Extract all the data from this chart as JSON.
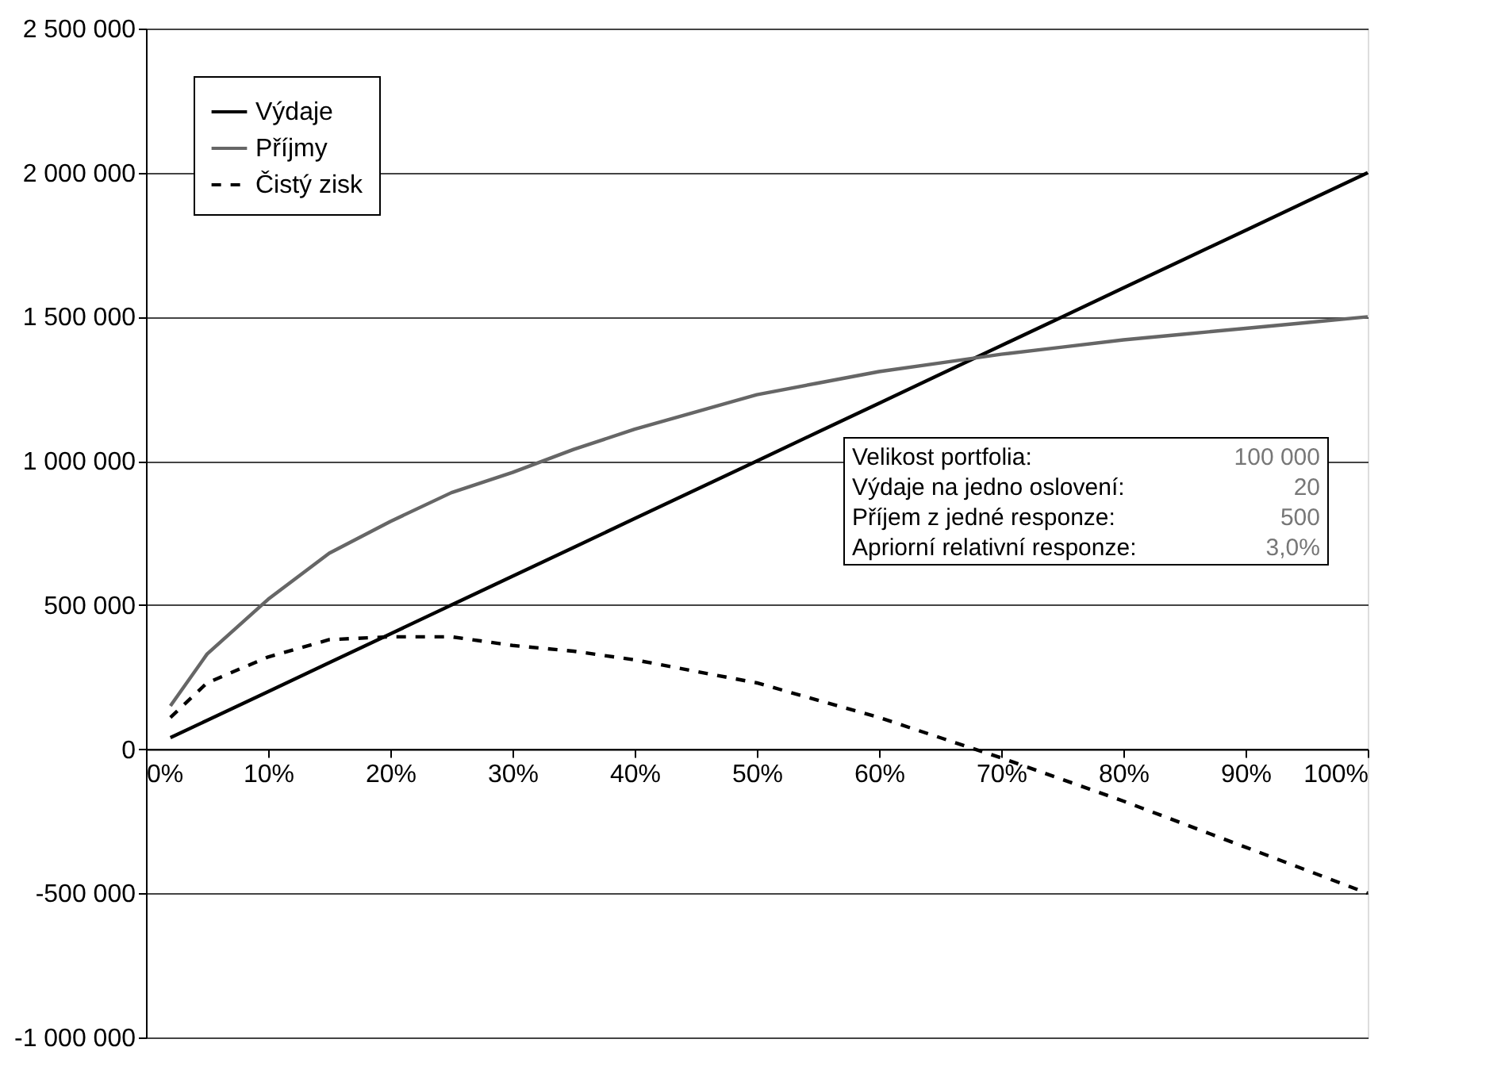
{
  "chart_data": {
    "type": "line",
    "x": [
      2,
      5,
      10,
      15,
      20,
      25,
      30,
      35,
      40,
      45,
      50,
      55,
      60,
      65,
      70,
      75,
      80,
      85,
      90,
      95,
      100
    ],
    "series": [
      {
        "name": "Výdaje",
        "color": "#000000",
        "line_style": "solid",
        "values": [
          40000,
          100000,
          200000,
          300000,
          400000,
          500000,
          600000,
          700000,
          800000,
          900000,
          1000000,
          1100000,
          1200000,
          1300000,
          1400000,
          1500000,
          1600000,
          1700000,
          1800000,
          1900000,
          2000000
        ]
      },
      {
        "name": "Příjmy",
        "color": "#666666",
        "line_style": "solid",
        "values": [
          150000,
          330000,
          520000,
          680000,
          790000,
          890000,
          960000,
          1040000,
          1110000,
          1170000,
          1230000,
          1270000,
          1310000,
          1340000,
          1370000,
          1395000,
          1420000,
          1440000,
          1460000,
          1480000,
          1500000
        ]
      },
      {
        "name": "Čistý zisk",
        "color": "#000000",
        "line_style": "dashed",
        "values": [
          110000,
          230000,
          320000,
          380000,
          390000,
          390000,
          360000,
          340000,
          310000,
          270000,
          230000,
          170000,
          110000,
          40000,
          -30000,
          -105000,
          -180000,
          -260000,
          -340000,
          -420000,
          -500000
        ]
      }
    ],
    "xlim": [
      0,
      100
    ],
    "xticks": [
      {
        "value": 0,
        "label": "0%"
      },
      {
        "value": 10,
        "label": "10%"
      },
      {
        "value": 20,
        "label": "20%"
      },
      {
        "value": 30,
        "label": "30%"
      },
      {
        "value": 40,
        "label": "40%"
      },
      {
        "value": 50,
        "label": "50%"
      },
      {
        "value": 60,
        "label": "60%"
      },
      {
        "value": 70,
        "label": "70%"
      },
      {
        "value": 80,
        "label": "80%"
      },
      {
        "value": 90,
        "label": "90%"
      },
      {
        "value": 100,
        "label": "100%"
      }
    ],
    "ylim": [
      -1000000,
      2500000
    ],
    "yticks": [
      {
        "value": -1000000,
        "label": "-1 000 000"
      },
      {
        "value": -500000,
        "label": "-500 000"
      },
      {
        "value": 0,
        "label": "0"
      },
      {
        "value": 500000,
        "label": "500 000"
      },
      {
        "value": 1000000,
        "label": "1 000 000"
      },
      {
        "value": 1500000,
        "label": "1 500 000"
      },
      {
        "value": 2000000,
        "label": "2 000 000"
      },
      {
        "value": 2500000,
        "label": "2 500 000"
      }
    ],
    "grid": "y",
    "legend": "top left",
    "annotations": [
      "Velikost portfolia:",
      "100 000",
      "Výdaje na jedno oslovení:",
      "20",
      "Příjem z jedné responze:",
      "500",
      "Apriorní relativní responze:",
      "3,0%"
    ]
  }
}
